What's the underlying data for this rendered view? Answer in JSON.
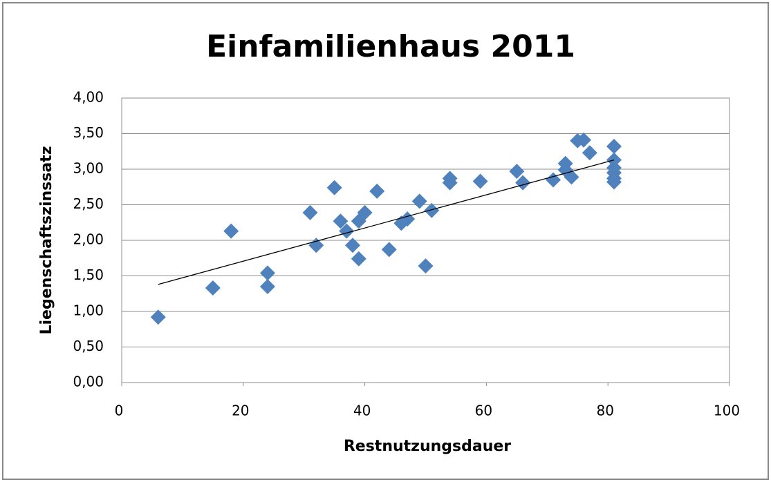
{
  "chart_data": {
    "type": "scatter",
    "title": "Einfamilienhaus 2011",
    "x_label": "Restnutzungsdauer",
    "y_label": "Liegenschaftszinssatz",
    "series": [
      {
        "name": "Liegenschaftszinssatz",
        "color": "#4f81bd",
        "x": [
          6,
          15,
          18,
          24,
          24,
          31,
          32,
          35,
          36,
          37,
          38,
          39,
          39,
          40,
          42,
          44,
          46,
          47,
          49,
          50,
          51,
          54,
          54,
          59,
          65,
          66,
          71,
          73,
          73,
          74,
          75,
          76,
          77,
          81,
          81,
          81,
          81,
          81,
          81
        ],
        "values": [
          0.92,
          1.33,
          2.13,
          1.54,
          1.35,
          2.39,
          1.93,
          2.74,
          2.27,
          2.13,
          1.93,
          2.27,
          1.74,
          2.39,
          2.69,
          1.87,
          2.24,
          2.3,
          2.55,
          1.64,
          2.42,
          2.87,
          2.81,
          2.83,
          2.97,
          2.81,
          2.85,
          3.08,
          2.99,
          2.89,
          3.4,
          3.41,
          3.23,
          3.32,
          3.13,
          3.02,
          2.95,
          2.87,
          2.82
        ]
      }
    ],
    "trendline": {
      "color": "#000000",
      "x": [
        6,
        81
      ],
      "values": [
        1.38,
        3.13
      ]
    },
    "xlim": [
      0,
      100
    ],
    "xticks": [
      0,
      20,
      40,
      60,
      80,
      100
    ],
    "ylim": [
      0,
      4
    ],
    "yticks": [
      {
        "value": 0,
        "label": "0,00"
      },
      {
        "value": 0.5,
        "label": "0,50"
      },
      {
        "value": 1,
        "label": "1,00"
      },
      {
        "value": 1.5,
        "label": "1,50"
      },
      {
        "value": 2,
        "label": "2,00"
      },
      {
        "value": 2.5,
        "label": "2,50"
      },
      {
        "value": 3,
        "label": "3,00"
      },
      {
        "value": 3.5,
        "label": "3,50"
      },
      {
        "value": 4,
        "label": "4,00"
      }
    ],
    "grid": true
  }
}
